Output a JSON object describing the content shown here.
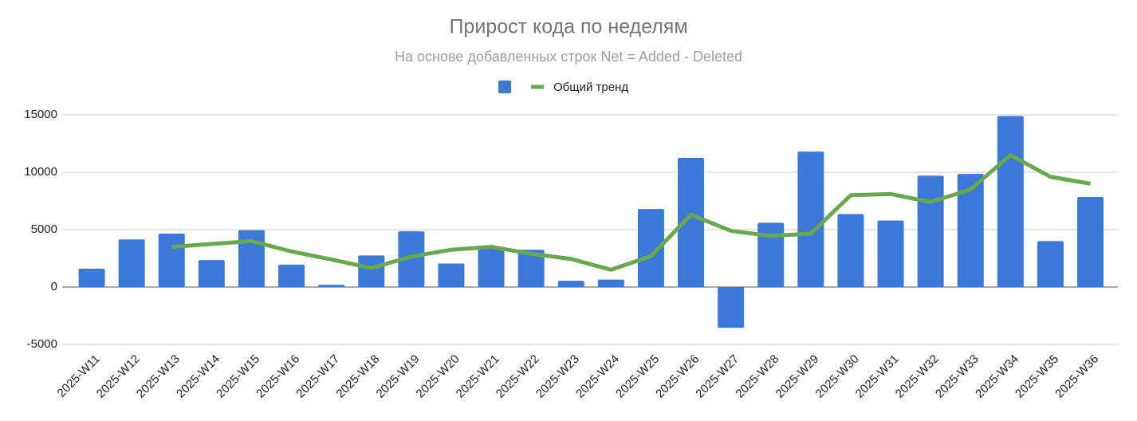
{
  "chart_data": {
    "type": "bar",
    "title": "Прирост кода по неделям",
    "subtitle": "На основе добавленных строк Net = Added - Deleted",
    "categories": [
      "2025-W11",
      "2025-W12",
      "2025-W13",
      "2025-W14",
      "2025-W15",
      "2025-W16",
      "2025-W17",
      "2025-W18",
      "2025-W19",
      "2025-W20",
      "2025-W21",
      "2025-W22",
      "2025-W23",
      "2025-W24",
      "2025-W25",
      "2025-W26",
      "2025-W27",
      "2025-W28",
      "2025-W29",
      "2025-W30",
      "2025-W31",
      "2025-W32",
      "2025-W33",
      "2025-W34",
      "2025-W35",
      "2025-W36"
    ],
    "series": [
      {
        "type": "bar",
        "color": "#3c78d8",
        "values": [
          1600,
          4150,
          4650,
          2350,
          4950,
          1950,
          200,
          2750,
          4850,
          2050,
          3500,
          3250,
          550,
          650,
          6800,
          11250,
          -3550,
          5600,
          11800,
          6350,
          5800,
          9700,
          9850,
          14900,
          4000,
          7850
        ]
      },
      {
        "type": "line",
        "name": "Общий тренд",
        "color": "#6aa84f",
        "values": [
          null,
          null,
          3500,
          3750,
          4000,
          3100,
          2400,
          1650,
          2650,
          3250,
          3500,
          2900,
          2450,
          1500,
          2700,
          6300,
          4900,
          4450,
          4650,
          8000,
          8100,
          7400,
          8500,
          11500,
          9600,
          9000
        ]
      }
    ],
    "ylim": [
      -5000,
      15000
    ],
    "yticks": [
      -5000,
      0,
      5000,
      10000,
      15000
    ],
    "grid": true,
    "legend": "top"
  }
}
